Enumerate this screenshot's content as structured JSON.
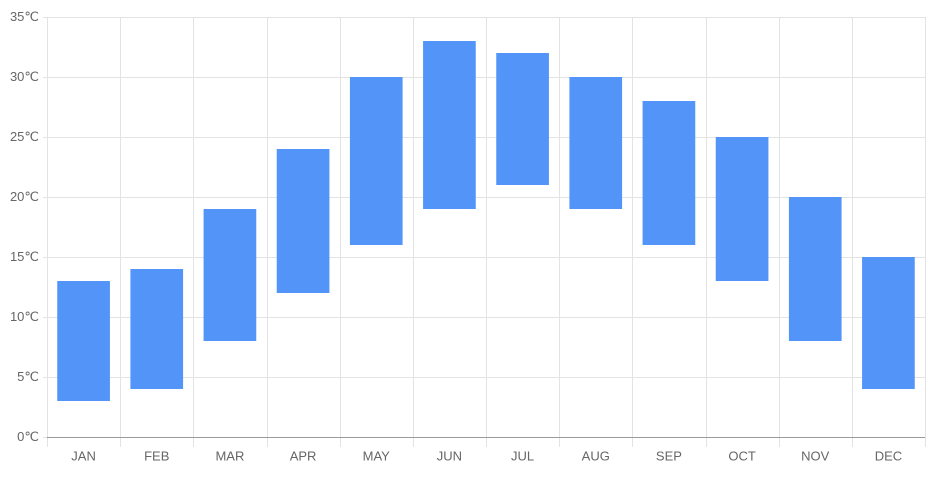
{
  "chart_data": {
    "type": "floating-bar",
    "categories": [
      "JAN",
      "FEB",
      "MAR",
      "APR",
      "MAY",
      "JUN",
      "JUL",
      "AUG",
      "SEP",
      "OCT",
      "NOV",
      "DEC"
    ],
    "low": [
      3,
      4,
      8,
      12,
      16,
      19,
      21,
      19,
      16,
      13,
      8,
      4
    ],
    "high": [
      13,
      14,
      19,
      24,
      30,
      33,
      32,
      30,
      28,
      25,
      20,
      15
    ],
    "color": "#5294f7",
    "ylim": [
      0,
      35
    ],
    "yticks": [
      {
        "value": 0,
        "label": "0℃"
      },
      {
        "value": 5,
        "label": "5℃"
      },
      {
        "value": 10,
        "label": "10℃"
      },
      {
        "value": 15,
        "label": "15℃"
      },
      {
        "value": 20,
        "label": "20℃"
      },
      {
        "value": 25,
        "label": "25℃"
      },
      {
        "value": 30,
        "label": "30℃"
      },
      {
        "value": 35,
        "label": "35℃"
      }
    ],
    "grid": true
  }
}
